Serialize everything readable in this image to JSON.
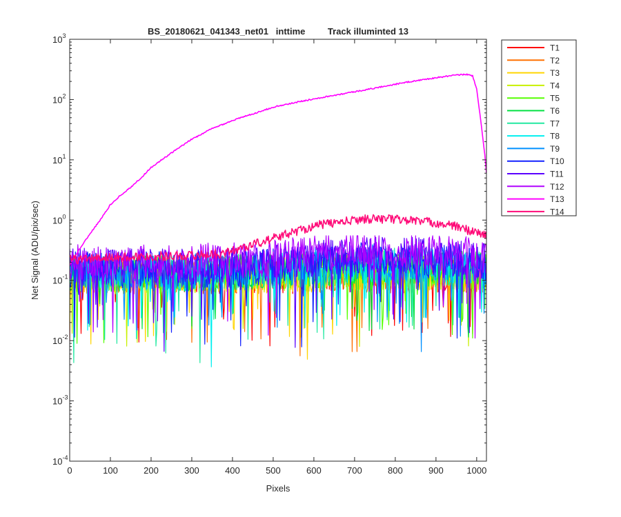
{
  "chart_data": {
    "type": "line",
    "title": "BS_20180621_041343_net01   inttime         Track illuminted 13",
    "xlabel": "Pixels",
    "ylabel": "Net Signal (ADU/pix/sec)",
    "xlim": [
      0,
      1024
    ],
    "ylim": [
      0.0001,
      1000
    ],
    "yscale": "log",
    "grid": false,
    "legend_position": "outside-right",
    "x_ticks": [
      0,
      100,
      200,
      300,
      400,
      500,
      600,
      700,
      800,
      900,
      1000
    ],
    "y_ticks": [
      {
        "value": 0.0001,
        "base": "10",
        "exp": "-4"
      },
      {
        "value": 0.001,
        "base": "10",
        "exp": "-3"
      },
      {
        "value": 0.01,
        "base": "10",
        "exp": "-2"
      },
      {
        "value": 0.1,
        "base": "10",
        "exp": "-1"
      },
      {
        "value": 1,
        "base": "10",
        "exp": "0"
      },
      {
        "value": 10,
        "base": "10",
        "exp": "1"
      },
      {
        "value": 100,
        "base": "10",
        "exp": "2"
      },
      {
        "value": 1000,
        "base": "10",
        "exp": "3"
      }
    ],
    "series": [
      {
        "name": "T1",
        "color": "#ff0000",
        "mean": 0.12
      },
      {
        "name": "T2",
        "color": "#ff7000",
        "mean": 0.12
      },
      {
        "name": "T3",
        "color": "#ffd500",
        "mean": 0.12
      },
      {
        "name": "T4",
        "color": "#c8f000",
        "mean": 0.12
      },
      {
        "name": "T5",
        "color": "#55ff00",
        "mean": 0.13
      },
      {
        "name": "T6",
        "color": "#00e040",
        "mean": 0.13
      },
      {
        "name": "T7",
        "color": "#20e8a0",
        "mean": 0.13
      },
      {
        "name": "T8",
        "color": "#00f0f0",
        "mean": 0.13
      },
      {
        "name": "T9",
        "color": "#0090ff",
        "mean": 0.14
      },
      {
        "name": "T10",
        "color": "#1020ff",
        "mean": 0.15
      },
      {
        "name": "T11",
        "color": "#5a00ff",
        "mean": 0.17
      },
      {
        "name": "T12",
        "color": "#b000ff",
        "mean": 0.2
      },
      {
        "name": "T13",
        "color": "#ff00ff",
        "profile": [
          [
            0,
            0.18
          ],
          [
            20,
            0.3
          ],
          [
            50,
            0.6
          ],
          [
            75,
            1.0
          ],
          [
            100,
            1.8
          ],
          [
            125,
            2.6
          ],
          [
            150,
            3.5
          ],
          [
            175,
            5
          ],
          [
            200,
            7.5
          ],
          [
            250,
            13
          ],
          [
            300,
            22
          ],
          [
            350,
            33
          ],
          [
            400,
            45
          ],
          [
            450,
            58
          ],
          [
            500,
            75
          ],
          [
            550,
            88
          ],
          [
            600,
            103
          ],
          [
            650,
            118
          ],
          [
            700,
            135
          ],
          [
            750,
            155
          ],
          [
            800,
            180
          ],
          [
            850,
            205
          ],
          [
            900,
            230
          ],
          [
            950,
            255
          ],
          [
            975,
            262
          ],
          [
            990,
            248
          ],
          [
            1000,
            150
          ],
          [
            1010,
            45
          ],
          [
            1020,
            12
          ],
          [
            1024,
            6
          ]
        ]
      },
      {
        "name": "T14",
        "color": "#ff0a78",
        "profile": [
          [
            0,
            0.22
          ],
          [
            100,
            0.24
          ],
          [
            200,
            0.25
          ],
          [
            300,
            0.26
          ],
          [
            380,
            0.28
          ],
          [
            430,
            0.36
          ],
          [
            480,
            0.45
          ],
          [
            520,
            0.55
          ],
          [
            570,
            0.7
          ],
          [
            620,
            0.85
          ],
          [
            680,
            0.95
          ],
          [
            720,
            1.05
          ],
          [
            780,
            1.05
          ],
          [
            850,
            0.98
          ],
          [
            900,
            0.9
          ],
          [
            950,
            0.78
          ],
          [
            1000,
            0.62
          ],
          [
            1024,
            0.55
          ]
        ]
      }
    ]
  }
}
